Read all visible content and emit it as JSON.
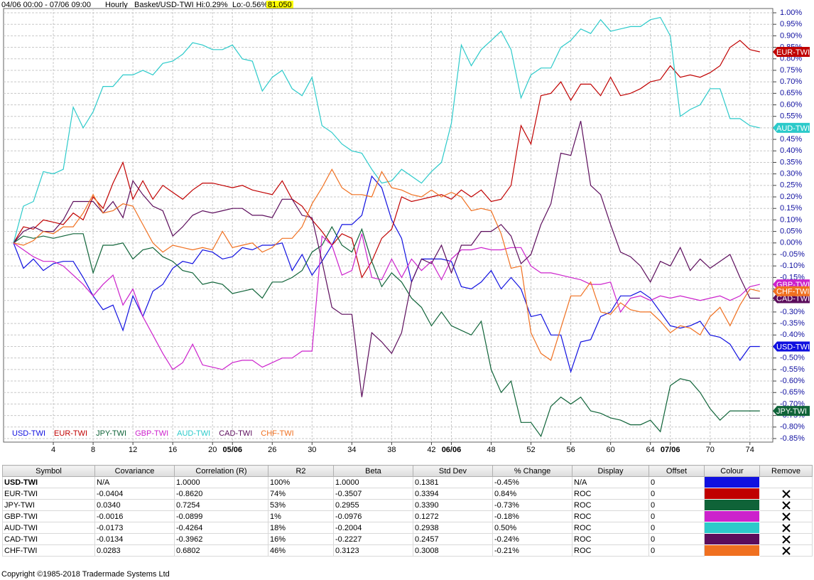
{
  "header": {
    "range": "04/06 00:00 - 07/06 09:00",
    "interval": "Hourly",
    "basket": "Basket/USD-TWI",
    "hi": "Hi:0.29%",
    "lo": "Lo:-0.56%",
    "price": "81.050"
  },
  "chart_data": {
    "type": "line",
    "x": [
      0,
      1,
      2,
      3,
      4,
      5,
      6,
      7,
      8,
      9,
      10,
      11,
      12,
      13,
      14,
      15,
      16,
      17,
      18,
      19,
      20,
      21,
      22,
      23,
      24,
      25,
      26,
      27,
      28,
      29,
      30,
      31,
      32,
      33,
      34,
      35,
      36,
      37,
      38,
      39,
      40,
      41,
      42,
      43,
      44,
      45,
      46,
      47,
      48,
      49,
      50,
      51,
      52,
      53,
      54,
      55,
      56,
      57,
      58,
      59,
      60,
      61,
      62,
      63,
      64,
      65,
      66,
      67,
      68,
      69,
      70,
      71,
      72,
      73,
      74,
      75
    ],
    "xlim": [
      -1,
      76.3
    ],
    "xticks": [
      4,
      8,
      12,
      16,
      20,
      {
        "value": 22,
        "label": "05/06"
      },
      26,
      30,
      34,
      38,
      42,
      {
        "value": 44,
        "label": "06/06"
      },
      48,
      52,
      56,
      60,
      64,
      {
        "value": 66,
        "label": "07/06"
      },
      70,
      74
    ],
    "ylim": [
      -0.85,
      1.0
    ],
    "yticks": [
      {
        "value": 1,
        "label": "1.00%"
      },
      {
        "value": 0.95,
        "label": "0.95%"
      },
      {
        "value": 0.9,
        "label": "0.90%"
      },
      {
        "value": 0.85,
        "label": "0.85%"
      },
      {
        "value": 0.8,
        "label": "0.80%"
      },
      {
        "value": 0.75,
        "label": "0.75%"
      },
      {
        "value": 0.7,
        "label": "0.70%"
      },
      {
        "value": 0.65,
        "label": "0.65%"
      },
      {
        "value": 0.6,
        "label": "0.60%"
      },
      {
        "value": 0.55,
        "label": "0.55%"
      },
      {
        "value": 0.5,
        "label": "0.50%"
      },
      {
        "value": 0.45,
        "label": "0.45%"
      },
      {
        "value": 0.4,
        "label": "0.40%"
      },
      {
        "value": 0.35,
        "label": "0.35%"
      },
      {
        "value": 0.3,
        "label": "0.30%"
      },
      {
        "value": 0.25,
        "label": "0.25%"
      },
      {
        "value": 0.2,
        "label": "0.20%"
      },
      {
        "value": 0.15,
        "label": "0.15%"
      },
      {
        "value": 0.1,
        "label": "0.10%"
      },
      {
        "value": 0.05,
        "label": "0.05%"
      },
      {
        "value": 0,
        "label": "0.00%"
      },
      {
        "value": -0.05,
        "label": "-0.05%"
      },
      {
        "value": -0.1,
        "label": "-0.10%"
      },
      {
        "value": -0.15,
        "label": "-0.15%"
      },
      {
        "value": -0.2,
        "label": "-0.20%"
      },
      {
        "value": -0.25,
        "label": "-0.25%"
      },
      {
        "value": -0.3,
        "label": "-0.30%"
      },
      {
        "value": -0.35,
        "label": "-0.35%"
      },
      {
        "value": -0.4,
        "label": "-0.40%"
      },
      {
        "value": -0.45,
        "label": "-0.45%"
      },
      {
        "value": -0.5,
        "label": "-0.50%"
      },
      {
        "value": -0.55,
        "label": "-0.55%"
      },
      {
        "value": -0.6,
        "label": "-0.60%"
      },
      {
        "value": -0.65,
        "label": "-0.65%"
      },
      {
        "value": -0.7,
        "label": "-0.70%"
      },
      {
        "value": -0.75,
        "label": "-0.75%"
      },
      {
        "value": -0.8,
        "label": "-0.80%"
      },
      {
        "value": -0.85,
        "label": "-0.85%"
      }
    ],
    "grid": true,
    "series": [
      {
        "name": "USD-TWI",
        "color": "#1010e0",
        "values": [
          0,
          -0.11,
          -0.07,
          -0.12,
          -0.09,
          -0.08,
          -0.08,
          -0.15,
          -0.23,
          -0.29,
          -0.27,
          -0.38,
          -0.23,
          -0.32,
          -0.21,
          -0.18,
          -0.11,
          -0.08,
          -0.09,
          -0.03,
          -0.04,
          -0.07,
          -0.06,
          -0.02,
          -0.03,
          -0.01,
          -0.01,
          0,
          -0.12,
          -0.05,
          -0.14,
          -0.08,
          -0.01,
          0.08,
          0.08,
          0.12,
          0.29,
          0.24,
          0.1,
          0.02,
          -0.17,
          -0.07,
          -0.07,
          -0.07,
          -0.08,
          -0.19,
          -0.2,
          -0.17,
          -0.12,
          -0.2,
          -0.15,
          -0.2,
          -0.32,
          -0.31,
          -0.4,
          -0.4,
          -0.56,
          -0.43,
          -0.42,
          -0.32,
          -0.3,
          -0.23,
          -0.23,
          -0.21,
          -0.24,
          -0.3,
          -0.36,
          -0.37,
          -0.36,
          -0.34,
          -0.4,
          -0.41,
          -0.44,
          -0.51,
          -0.45,
          -0.45
        ]
      },
      {
        "name": "EUR-TWI",
        "color": "#c00000",
        "values": [
          0,
          0.07,
          0.06,
          0.1,
          0.09,
          0.08,
          0.13,
          0.1,
          0.2,
          0.15,
          0.26,
          0.35,
          0.19,
          0.27,
          0.19,
          0.25,
          0.22,
          0.19,
          0.23,
          0.26,
          0.26,
          0.25,
          0.24,
          0.25,
          0.23,
          0.22,
          0.21,
          0.27,
          0.19,
          0.16,
          0.1,
          0.05,
          -0.01,
          0.04,
          0.02,
          -0.15,
          -0.08,
          0.02,
          0.06,
          0.2,
          0.18,
          0.19,
          0.2,
          0.21,
          0.19,
          0.23,
          0.2,
          0.23,
          0.18,
          0.19,
          0.25,
          0.51,
          0.43,
          0.64,
          0.65,
          0.7,
          0.62,
          0.69,
          0.69,
          0.64,
          0.72,
          0.64,
          0.65,
          0.67,
          0.7,
          0.71,
          0.77,
          0.72,
          0.73,
          0.72,
          0.74,
          0.77,
          0.85,
          0.88,
          0.84,
          0.83
        ]
      },
      {
        "name": "JPY-TWI",
        "color": "#0f6338",
        "values": [
          0,
          0.03,
          0.02,
          0.03,
          0.02,
          0.03,
          0.04,
          0.04,
          -0.13,
          -0.01,
          -0.01,
          0,
          -0.07,
          -0.03,
          -0.02,
          -0.06,
          -0.08,
          -0.12,
          -0.13,
          -0.18,
          -0.17,
          -0.18,
          -0.22,
          -0.21,
          -0.2,
          -0.24,
          -0.17,
          -0.17,
          -0.15,
          -0.12,
          -0.04,
          -0.01,
          0.07,
          -0.01,
          -0.04,
          0.06,
          -0.08,
          -0.19,
          -0.13,
          -0.17,
          -0.24,
          -0.28,
          -0.36,
          -0.3,
          -0.36,
          -0.38,
          -0.4,
          -0.34,
          -0.55,
          -0.65,
          -0.6,
          -0.78,
          -0.78,
          -0.84,
          -0.71,
          -0.67,
          -0.7,
          -0.67,
          -0.73,
          -0.74,
          -0.76,
          -0.77,
          -0.79,
          -0.79,
          -0.77,
          -0.82,
          -0.62,
          -0.59,
          -0.6,
          -0.65,
          -0.72,
          -0.77,
          -0.73,
          -0.73,
          -0.73,
          -0.73
        ]
      },
      {
        "name": "GBP-TWI",
        "color": "#cc22cc",
        "values": [
          0,
          -0.03,
          -0.06,
          -0.08,
          -0.08,
          -0.1,
          -0.14,
          -0.18,
          -0.23,
          -0.18,
          -0.14,
          -0.27,
          -0.2,
          -0.32,
          -0.4,
          -0.48,
          -0.55,
          -0.52,
          -0.44,
          -0.53,
          -0.54,
          -0.55,
          -0.52,
          -0.51,
          -0.51,
          -0.54,
          -0.52,
          -0.5,
          -0.5,
          -0.47,
          -0.47,
          0.03,
          -0.01,
          -0.14,
          -0.12,
          0.04,
          -0.15,
          -0.16,
          -0.07,
          -0.15,
          -0.07,
          -0.12,
          -0.08,
          -0.16,
          -0.07,
          -0.03,
          -0.03,
          -0.02,
          -0.03,
          -0.03,
          -0.02,
          -0.02,
          -0.1,
          -0.13,
          -0.13,
          -0.14,
          -0.15,
          -0.16,
          -0.18,
          -0.18,
          -0.17,
          -0.3,
          -0.24,
          -0.23,
          -0.25,
          -0.23,
          -0.24,
          -0.23,
          -0.24,
          -0.25,
          -0.24,
          -0.23,
          -0.25,
          -0.23,
          -0.19,
          -0.18
        ]
      },
      {
        "name": "AUD-TWI",
        "color": "#2ccaca",
        "values": [
          0,
          0.16,
          0.18,
          0.31,
          0.3,
          0.32,
          0.59,
          0.5,
          0.57,
          0.68,
          0.68,
          0.73,
          0.73,
          0.75,
          0.73,
          0.78,
          0.79,
          0.82,
          0.87,
          0.86,
          0.84,
          0.84,
          0.86,
          0.8,
          0.79,
          0.66,
          0.72,
          0.75,
          0.67,
          0.64,
          0.72,
          0.51,
          0.48,
          0.43,
          0.4,
          0.39,
          0.32,
          0.26,
          0.27,
          0.32,
          0.29,
          0.26,
          0.31,
          0.35,
          0.52,
          0.86,
          0.77,
          0.84,
          0.88,
          0.92,
          0.84,
          0.63,
          0.73,
          0.76,
          0.76,
          0.85,
          0.88,
          0.93,
          0.91,
          0.97,
          0.92,
          0.93,
          0.94,
          0.94,
          0.97,
          0.98,
          0.9,
          0.55,
          0.58,
          0.6,
          0.67,
          0.67,
          0.54,
          0.54,
          0.51,
          0.5
        ]
      },
      {
        "name": "CAD-TWI",
        "color": "#5c0d5c",
        "values": [
          0,
          0.05,
          0.07,
          0.05,
          0.05,
          0.1,
          0.18,
          0.18,
          0.18,
          0.13,
          0.18,
          0.11,
          0.27,
          0.21,
          0.16,
          0.14,
          0.03,
          0.07,
          0.12,
          0.14,
          0.13,
          0.14,
          0.15,
          0.15,
          0.12,
          0.12,
          0.11,
          0.19,
          0.19,
          0.12,
          0.11,
          -0.08,
          -0.28,
          -0.31,
          -0.31,
          -0.67,
          -0.39,
          -0.43,
          -0.48,
          -0.39,
          -0.17,
          -0.07,
          -0.09,
          -0.01,
          -0.13,
          -0.01,
          -0.01,
          0.05,
          0.05,
          0.08,
          0.03,
          -0.09,
          -0.05,
          0.08,
          0.17,
          0.39,
          0.38,
          0.53,
          0.25,
          0.21,
          0.08,
          -0.04,
          -0.06,
          -0.1,
          -0.17,
          -0.08,
          -0.1,
          -0.02,
          -0.12,
          -0.07,
          -0.11,
          -0.08,
          -0.05,
          -0.15,
          -0.24,
          -0.24
        ]
      },
      {
        "name": "CHF-TWI",
        "color": "#f07020",
        "values": [
          0,
          -0.01,
          0.01,
          0.05,
          0.04,
          0.07,
          0.07,
          0.13,
          0.21,
          0.13,
          0.14,
          0.17,
          0.16,
          0.08,
          0,
          -0.04,
          -0.01,
          -0.02,
          -0.03,
          -0.02,
          -0.03,
          0.05,
          -0.02,
          -0.01,
          0,
          -0.04,
          -0.02,
          0.02,
          0.02,
          0.07,
          0.17,
          0.24,
          0.32,
          0.24,
          0.21,
          0.21,
          0.2,
          0.31,
          0.24,
          0.23,
          0.21,
          0.2,
          0.23,
          0.2,
          0.22,
          0.2,
          0.14,
          0.15,
          0.14,
          0.04,
          -0.11,
          -0.1,
          -0.39,
          -0.48,
          -0.51,
          -0.37,
          -0.23,
          -0.23,
          -0.17,
          -0.3,
          -0.31,
          -0.26,
          -0.29,
          -0.3,
          -0.3,
          -0.34,
          -0.39,
          -0.36,
          -0.37,
          -0.4,
          -0.32,
          -0.28,
          -0.36,
          -0.27,
          -0.2,
          -0.21
        ]
      }
    ]
  },
  "table": {
    "columns": [
      "Symbol",
      "Covariance",
      "Correlation (R)",
      "R2",
      "Beta",
      "Std Dev",
      "% Change",
      "Display",
      "Offset",
      "Colour",
      "Remove"
    ],
    "rows": [
      [
        "USD-TWI",
        "N/A",
        "1.0000",
        "100%",
        "1.0000",
        "0.1381",
        "-0.45%",
        "N/A",
        "0"
      ],
      [
        "EUR-TWI",
        "-0.0404",
        "-0.8620",
        "74%",
        "-0.3507",
        "0.3394",
        "0.84%",
        "ROC",
        "0"
      ],
      [
        "JPY-TWI",
        "0.0340",
        "0.7254",
        "53%",
        "0.2955",
        "0.3390",
        "-0.73%",
        "ROC",
        "0"
      ],
      [
        "GBP-TWI",
        "-0.0016",
        "-0.0899",
        "1%",
        "-0.0976",
        "0.1272",
        "-0.18%",
        "ROC",
        "0"
      ],
      [
        "AUD-TWI",
        "-0.0173",
        "-0.4264",
        "18%",
        "-0.2004",
        "0.2938",
        "0.50%",
        "ROC",
        "0"
      ],
      [
        "CAD-TWI",
        "-0.0134",
        "-0.3962",
        "16%",
        "-0.2227",
        "0.2457",
        "-0.24%",
        "ROC",
        "0"
      ],
      [
        "CHF-TWI",
        "0.0283",
        "0.6802",
        "46%",
        "0.3123",
        "0.3008",
        "-0.21%",
        "ROC",
        "0"
      ]
    ]
  },
  "footer": "Copyright ©1985-2018 Tradermade Systems Ltd"
}
